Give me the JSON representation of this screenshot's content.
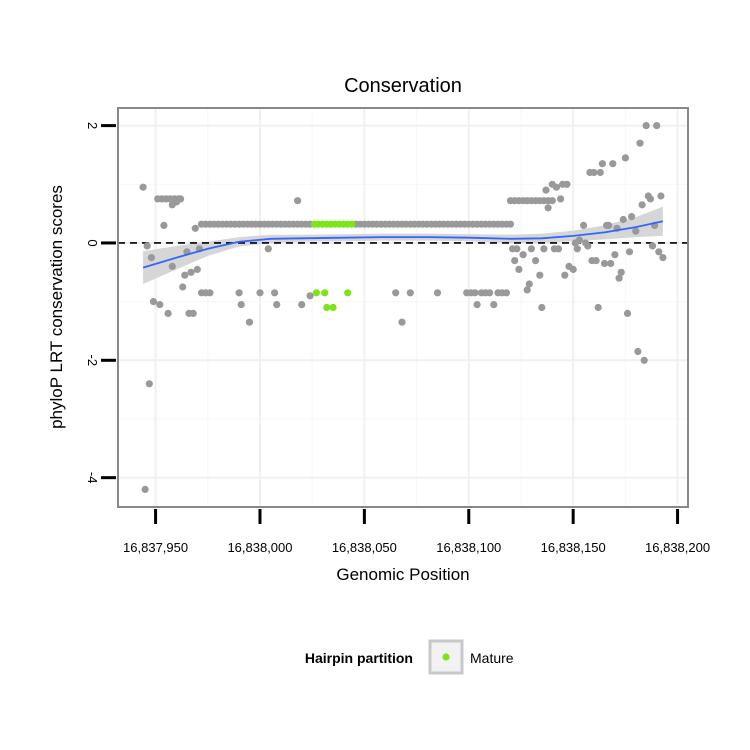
{
  "chart_data": {
    "type": "scatter",
    "title": "Conservation",
    "xlabel": "Genomic Position",
    "ylabel": "phyloP LRT conservation scores",
    "xlim": [
      16837932,
      16838205
    ],
    "ylim": [
      -4.5,
      2.3
    ],
    "x_ticks": [
      16837950,
      16838000,
      16838050,
      16838100,
      16838150,
      16838200
    ],
    "x_tick_labels": [
      "16,837,950",
      "16,838,000",
      "16,838,050",
      "16,838,100",
      "16,838,150",
      "16,838,200"
    ],
    "y_ticks": [
      -4,
      -2,
      0,
      2
    ],
    "y_tick_labels": [
      "-4",
      "-2",
      "0",
      "2"
    ],
    "reference_line": {
      "y": 0,
      "style": "dashed"
    },
    "grid": true,
    "legend": {
      "title": "Hairpin partition",
      "position": "bottom",
      "entries": [
        {
          "label": "Mature",
          "color": "#7fe31a"
        }
      ]
    },
    "colors": {
      "other": "#999999",
      "mature": "#7fe31a",
      "smooth": "#3366ff",
      "ribbon": "#d2d2d2",
      "panel_border": "#888888"
    },
    "smooth_fit": {
      "x": [
        16837944,
        16837960,
        16837975,
        16837990,
        16838005,
        16838020,
        16838040,
        16838060,
        16838080,
        16838100,
        16838120,
        16838135,
        16838150,
        16838165,
        16838180,
        16838193
      ],
      "y": [
        -0.42,
        -0.25,
        -0.1,
        0.02,
        0.07,
        0.08,
        0.09,
        0.1,
        0.1,
        0.09,
        0.07,
        0.08,
        0.12,
        0.18,
        0.27,
        0.37
      ],
      "lower": [
        -0.7,
        -0.45,
        -0.22,
        -0.06,
        0.0,
        0.02,
        0.03,
        0.04,
        0.04,
        0.03,
        0.0,
        0.0,
        0.03,
        0.06,
        0.1,
        0.12
      ],
      "upper": [
        -0.14,
        -0.05,
        0.02,
        0.1,
        0.14,
        0.14,
        0.15,
        0.16,
        0.16,
        0.15,
        0.14,
        0.16,
        0.21,
        0.3,
        0.44,
        0.62
      ]
    },
    "series": [
      {
        "name": "Other",
        "points": [
          [
            16837944,
            0.95
          ],
          [
            16837945,
            -4.2
          ],
          [
            16837946,
            -0.05
          ],
          [
            16837947,
            -2.4
          ],
          [
            16837948,
            -0.25
          ],
          [
            16837949,
            -1.0
          ],
          [
            16837951,
            0.75
          ],
          [
            16837952,
            -1.05
          ],
          [
            16837953,
            0.75
          ],
          [
            16837954,
            0.3
          ],
          [
            16837955,
            0.75
          ],
          [
            16837956,
            -1.2
          ],
          [
            16837957,
            0.75
          ],
          [
            16837958,
            0.65
          ],
          [
            16837958,
            -0.4
          ],
          [
            16837959,
            0.75
          ],
          [
            16837960,
            0.7
          ],
          [
            16837961,
            0.75
          ],
          [
            16837962,
            0.75
          ],
          [
            16837963,
            -0.75
          ],
          [
            16837964,
            -0.55
          ],
          [
            16837965,
            -0.15
          ],
          [
            16837966,
            -1.2
          ],
          [
            16837967,
            -0.5
          ],
          [
            16837968,
            -1.2
          ],
          [
            16837969,
            0.25
          ],
          [
            16837970,
            -0.45
          ],
          [
            16837971,
            -0.1
          ],
          [
            16837972,
            0.32
          ],
          [
            16837974,
            0.32
          ],
          [
            16837976,
            0.32
          ],
          [
            16837978,
            0.32
          ],
          [
            16837980,
            0.32
          ],
          [
            16837982,
            0.32
          ],
          [
            16837984,
            0.32
          ],
          [
            16837986,
            0.32
          ],
          [
            16837988,
            0.32
          ],
          [
            16837990,
            0.32
          ],
          [
            16837992,
            0.32
          ],
          [
            16837994,
            0.32
          ],
          [
            16837996,
            0.32
          ],
          [
            16837998,
            0.32
          ],
          [
            16838000,
            0.32
          ],
          [
            16838002,
            0.32
          ],
          [
            16838004,
            0.32
          ],
          [
            16838006,
            0.32
          ],
          [
            16838008,
            0.32
          ],
          [
            16838010,
            0.32
          ],
          [
            16838012,
            0.32
          ],
          [
            16838014,
            0.32
          ],
          [
            16838016,
            0.32
          ],
          [
            16838018,
            0.32
          ],
          [
            16838020,
            0.32
          ],
          [
            16838022,
            0.32
          ],
          [
            16838024,
            0.32
          ],
          [
            16838046,
            0.32
          ],
          [
            16838048,
            0.32
          ],
          [
            16838050,
            0.32
          ],
          [
            16838052,
            0.32
          ],
          [
            16838054,
            0.32
          ],
          [
            16838056,
            0.32
          ],
          [
            16838058,
            0.32
          ],
          [
            16838060,
            0.32
          ],
          [
            16838062,
            0.32
          ],
          [
            16838064,
            0.32
          ],
          [
            16838066,
            0.32
          ],
          [
            16838068,
            0.32
          ],
          [
            16838070,
            0.32
          ],
          [
            16838072,
            0.32
          ],
          [
            16838074,
            0.32
          ],
          [
            16838076,
            0.32
          ],
          [
            16838078,
            0.32
          ],
          [
            16838080,
            0.32
          ],
          [
            16838082,
            0.32
          ],
          [
            16838084,
            0.32
          ],
          [
            16838086,
            0.32
          ],
          [
            16838088,
            0.32
          ],
          [
            16838090,
            0.32
          ],
          [
            16838092,
            0.32
          ],
          [
            16838094,
            0.32
          ],
          [
            16838096,
            0.32
          ],
          [
            16838098,
            0.32
          ],
          [
            16838100,
            0.32
          ],
          [
            16838102,
            0.32
          ],
          [
            16838104,
            0.32
          ],
          [
            16838106,
            0.32
          ],
          [
            16838108,
            0.32
          ],
          [
            16838110,
            0.32
          ],
          [
            16838112,
            0.32
          ],
          [
            16838114,
            0.32
          ],
          [
            16838116,
            0.32
          ],
          [
            16838118,
            0.32
          ],
          [
            16838120,
            0.32
          ],
          [
            16837972,
            -0.85
          ],
          [
            16837974,
            -0.85
          ],
          [
            16837976,
            -0.85
          ],
          [
            16837990,
            -0.85
          ],
          [
            16837991,
            -1.05
          ],
          [
            16837995,
            -1.35
          ],
          [
            16838000,
            -0.85
          ],
          [
            16838004,
            -0.1
          ],
          [
            16838007,
            -0.85
          ],
          [
            16838008,
            -1.05
          ],
          [
            16838018,
            0.72
          ],
          [
            16838020,
            -1.05
          ],
          [
            16838024,
            -0.9
          ],
          [
            16838065,
            -0.85
          ],
          [
            16838068,
            -1.35
          ],
          [
            16838072,
            -0.85
          ],
          [
            16838085,
            -0.85
          ],
          [
            16838099,
            -0.85
          ],
          [
            16838101,
            -0.85
          ],
          [
            16838103,
            -0.85
          ],
          [
            16838104,
            -1.05
          ],
          [
            16838106,
            -0.85
          ],
          [
            16838108,
            -0.85
          ],
          [
            16838110,
            -0.85
          ],
          [
            16838112,
            -1.05
          ],
          [
            16838114,
            -0.85
          ],
          [
            16838116,
            -0.85
          ],
          [
            16838118,
            -0.85
          ],
          [
            16838120,
            0.72
          ],
          [
            16838122,
            0.72
          ],
          [
            16838124,
            0.72
          ],
          [
            16838126,
            0.72
          ],
          [
            16838128,
            0.72
          ],
          [
            16838130,
            0.72
          ],
          [
            16838132,
            0.72
          ],
          [
            16838134,
            0.72
          ],
          [
            16838136,
            0.72
          ],
          [
            16838138,
            0.72
          ],
          [
            16838140,
            0.72
          ],
          [
            16838121,
            -0.1
          ],
          [
            16838122,
            -0.3
          ],
          [
            16838123,
            -0.1
          ],
          [
            16838124,
            -0.45
          ],
          [
            16838126,
            -0.2
          ],
          [
            16838128,
            -0.8
          ],
          [
            16838129,
            -0.7
          ],
          [
            16838130,
            -0.1
          ],
          [
            16838132,
            -0.3
          ],
          [
            16838134,
            -0.55
          ],
          [
            16838135,
            -1.1
          ],
          [
            16838136,
            -0.1
          ],
          [
            16838137,
            0.9
          ],
          [
            16838138,
            0.6
          ],
          [
            16838140,
            1.0
          ],
          [
            16838141,
            -0.1
          ],
          [
            16838142,
            0.95
          ],
          [
            16838143,
            -0.1
          ],
          [
            16838144,
            0.75
          ],
          [
            16838145,
            1.0
          ],
          [
            16838146,
            -0.55
          ],
          [
            16838147,
            1.0
          ],
          [
            16838148,
            -0.4
          ],
          [
            16838150,
            -0.45
          ],
          [
            16838151,
            0.0
          ],
          [
            16838152,
            -0.1
          ],
          [
            16838153,
            0.05
          ],
          [
            16838155,
            0.3
          ],
          [
            16838156,
            0.0
          ],
          [
            16838157,
            -0.05
          ],
          [
            16838158,
            1.2
          ],
          [
            16838159,
            -0.3
          ],
          [
            16838160,
            1.2
          ],
          [
            16838161,
            -0.3
          ],
          [
            16838162,
            -1.1
          ],
          [
            16838163,
            1.2
          ],
          [
            16838164,
            1.35
          ],
          [
            16838165,
            -0.35
          ],
          [
            16838166,
            0.3
          ],
          [
            16838167,
            0.3
          ],
          [
            16838168,
            -0.35
          ],
          [
            16838169,
            1.35
          ],
          [
            16838170,
            -0.2
          ],
          [
            16838171,
            0.25
          ],
          [
            16838172,
            -0.6
          ],
          [
            16838173,
            -0.5
          ],
          [
            16838174,
            0.4
          ],
          [
            16838175,
            1.45
          ],
          [
            16838176,
            -1.2
          ],
          [
            16838177,
            -0.15
          ],
          [
            16838178,
            0.45
          ],
          [
            16838180,
            0.2
          ],
          [
            16838181,
            -1.85
          ],
          [
            16838182,
            1.7
          ],
          [
            16838183,
            0.65
          ],
          [
            16838184,
            -2.0
          ],
          [
            16838185,
            2.0
          ],
          [
            16838186,
            0.8
          ],
          [
            16838187,
            0.75
          ],
          [
            16838188,
            -0.05
          ],
          [
            16838189,
            0.3
          ],
          [
            16838190,
            2.0
          ],
          [
            16838191,
            -0.15
          ],
          [
            16838192,
            0.8
          ],
          [
            16838193,
            -0.25
          ]
        ]
      },
      {
        "name": "Mature",
        "points": [
          [
            16838026,
            0.32
          ],
          [
            16838028,
            0.32
          ],
          [
            16838030,
            0.32
          ],
          [
            16838032,
            0.32
          ],
          [
            16838034,
            0.32
          ],
          [
            16838036,
            0.32
          ],
          [
            16838038,
            0.32
          ],
          [
            16838040,
            0.32
          ],
          [
            16838042,
            0.32
          ],
          [
            16838044,
            0.32
          ],
          [
            16838027,
            -0.85
          ],
          [
            16838031,
            -0.85
          ],
          [
            16838042,
            -0.85
          ],
          [
            16838032,
            -1.1
          ],
          [
            16838035,
            -1.1
          ]
        ]
      }
    ]
  }
}
